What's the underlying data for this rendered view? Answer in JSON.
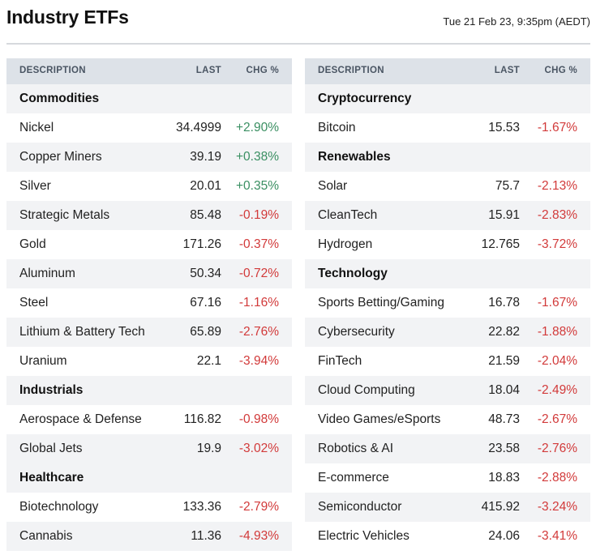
{
  "header": {
    "title": "Industry ETFs",
    "timestamp": "Tue 21 Feb 23, 9:35pm (AEDT)"
  },
  "columns": {
    "description": "DESCRIPTION",
    "last": "LAST",
    "chg": "CHG %"
  },
  "colors": {
    "positive": "#3a8f62",
    "negative": "#d23a3a",
    "header_bg": "#dde2e8",
    "stripe_bg": "#f2f3f5"
  },
  "left_table": [
    {
      "type": "section",
      "name": "Commodities"
    },
    {
      "type": "row",
      "name": "Nickel",
      "last": "34.4999",
      "chg": "+2.90%",
      "dir": "pos"
    },
    {
      "type": "row",
      "name": "Copper Miners",
      "last": "39.19",
      "chg": "+0.38%",
      "dir": "pos"
    },
    {
      "type": "row",
      "name": "Silver",
      "last": "20.01",
      "chg": "+0.35%",
      "dir": "pos"
    },
    {
      "type": "row",
      "name": "Strategic Metals",
      "last": "85.48",
      "chg": "-0.19%",
      "dir": "neg"
    },
    {
      "type": "row",
      "name": "Gold",
      "last": "171.26",
      "chg": "-0.37%",
      "dir": "neg"
    },
    {
      "type": "row",
      "name": "Aluminum",
      "last": "50.34",
      "chg": "-0.72%",
      "dir": "neg"
    },
    {
      "type": "row",
      "name": "Steel",
      "last": "67.16",
      "chg": "-1.16%",
      "dir": "neg"
    },
    {
      "type": "row",
      "name": "Lithium & Battery Tech",
      "last": "65.89",
      "chg": "-2.76%",
      "dir": "neg"
    },
    {
      "type": "row",
      "name": "Uranium",
      "last": "22.1",
      "chg": "-3.94%",
      "dir": "neg"
    },
    {
      "type": "section",
      "name": "Industrials"
    },
    {
      "type": "row",
      "name": "Aerospace & Defense",
      "last": "116.82",
      "chg": "-0.98%",
      "dir": "neg"
    },
    {
      "type": "row",
      "name": "Global Jets",
      "last": "19.9",
      "chg": "-3.02%",
      "dir": "neg"
    },
    {
      "type": "section",
      "name": "Healthcare"
    },
    {
      "type": "row",
      "name": "Biotechnology",
      "last": "133.36",
      "chg": "-2.79%",
      "dir": "neg"
    },
    {
      "type": "row",
      "name": "Cannabis",
      "last": "11.36",
      "chg": "-4.93%",
      "dir": "neg"
    }
  ],
  "right_table": [
    {
      "type": "section",
      "name": "Cryptocurrency"
    },
    {
      "type": "row",
      "name": "Bitcoin",
      "last": "15.53",
      "chg": "-1.67%",
      "dir": "neg"
    },
    {
      "type": "section",
      "name": "Renewables"
    },
    {
      "type": "row",
      "name": "Solar",
      "last": "75.7",
      "chg": "-2.13%",
      "dir": "neg"
    },
    {
      "type": "row",
      "name": "CleanTech",
      "last": "15.91",
      "chg": "-2.83%",
      "dir": "neg"
    },
    {
      "type": "row",
      "name": "Hydrogen",
      "last": "12.765",
      "chg": "-3.72%",
      "dir": "neg"
    },
    {
      "type": "section",
      "name": "Technology"
    },
    {
      "type": "row",
      "name": "Sports Betting/Gaming",
      "last": "16.78",
      "chg": "-1.67%",
      "dir": "neg"
    },
    {
      "type": "row",
      "name": "Cybersecurity",
      "last": "22.82",
      "chg": "-1.88%",
      "dir": "neg"
    },
    {
      "type": "row",
      "name": "FinTech",
      "last": "21.59",
      "chg": "-2.04%",
      "dir": "neg"
    },
    {
      "type": "row",
      "name": "Cloud Computing",
      "last": "18.04",
      "chg": "-2.49%",
      "dir": "neg"
    },
    {
      "type": "row",
      "name": "Video Games/eSports",
      "last": "48.73",
      "chg": "-2.67%",
      "dir": "neg"
    },
    {
      "type": "row",
      "name": "Robotics & AI",
      "last": "23.58",
      "chg": "-2.76%",
      "dir": "neg"
    },
    {
      "type": "row",
      "name": "E-commerce",
      "last": "18.83",
      "chg": "-2.88%",
      "dir": "neg"
    },
    {
      "type": "row",
      "name": "Semiconductor",
      "last": "415.92",
      "chg": "-3.24%",
      "dir": "neg"
    },
    {
      "type": "row",
      "name": "Electric Vehicles",
      "last": "24.06",
      "chg": "-3.41%",
      "dir": "neg"
    }
  ]
}
